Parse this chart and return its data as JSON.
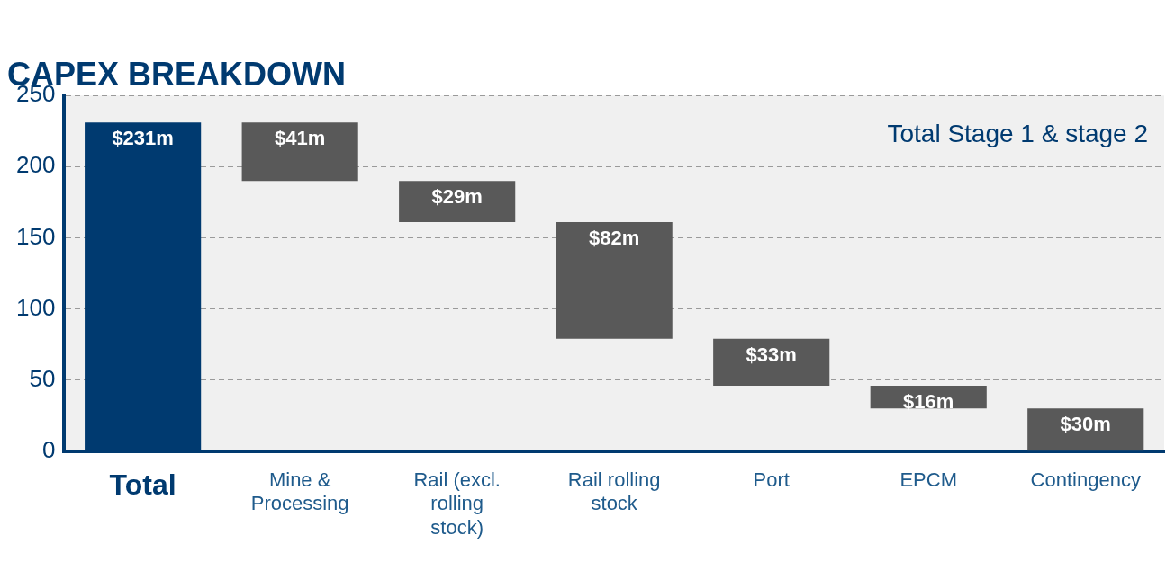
{
  "chart_data": {
    "type": "bar",
    "title": "CAPEX BREAKDOWN",
    "categories": [
      "Total",
      "Mine & Processing",
      "Rail (excl. rolling stock)",
      "Rail rolling stock",
      "Port",
      "EPCM",
      "Contingency"
    ],
    "values": [
      231,
      41,
      29,
      82,
      33,
      16,
      30
    ],
    "base": [
      0,
      190,
      161,
      79,
      46,
      30,
      0
    ],
    "colors": [
      "#003a70",
      "#595959",
      "#595959",
      "#595959",
      "#595959",
      "#595959",
      "#595959"
    ],
    "value_labels": [
      "$231m",
      "$41m",
      "$29m",
      "$82m",
      "$33m",
      "$16m",
      "$30m"
    ],
    "ylim": [
      0,
      250
    ],
    "yticks": [
      0,
      50,
      100,
      150,
      200,
      250
    ],
    "grid": "y",
    "legend": false,
    "annotations": [
      "Total Stage 1 & stage 2"
    ]
  }
}
